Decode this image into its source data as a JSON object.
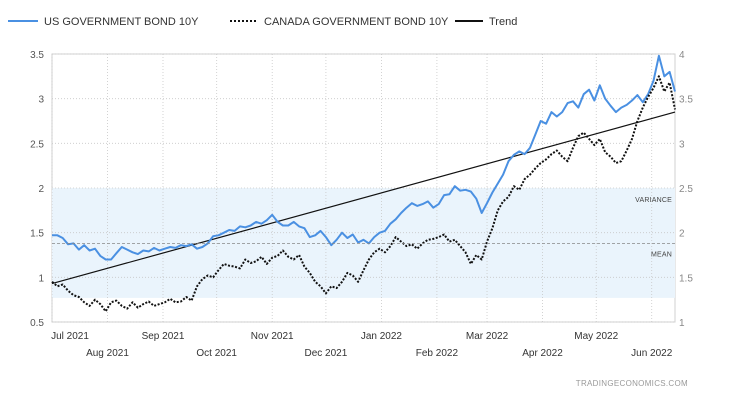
{
  "chart_data": {
    "type": "line",
    "watermark": "TRADINGECONOMICS.COM",
    "legend": [
      {
        "name": "US GOVERNMENT BOND 10Y",
        "style": "solid-blue"
      },
      {
        "name": "CANADA GOVERNMENT BOND 10Y",
        "style": "dotted-black"
      },
      {
        "name": "Trend",
        "style": "solid-black"
      }
    ],
    "y_left": {
      "min": 0.5,
      "max": 3.5,
      "ticks": [
        "0.5",
        "1",
        "1.5",
        "2",
        "2.5",
        "3",
        "3.5"
      ]
    },
    "y_right": {
      "min": 1,
      "max": 4,
      "ticks": [
        "1",
        "1.5",
        "2",
        "2.5",
        "3",
        "3.5",
        "4"
      ]
    },
    "x_range_days": [
      0,
      348
    ],
    "x_ticks_top": [
      {
        "label": "Jul 2021",
        "day": 0
      },
      {
        "label": "Sep 2021",
        "day": 62
      },
      {
        "label": "Nov 2021",
        "day": 123
      },
      {
        "label": "Jan 2022",
        "day": 184
      },
      {
        "label": "Mar 2022",
        "day": 243
      },
      {
        "label": "May 2022",
        "day": 304
      }
    ],
    "x_ticks_bottom": [
      {
        "label": "Aug 2021",
        "day": 31
      },
      {
        "label": "Oct 2021",
        "day": 92
      },
      {
        "label": "Dec 2021",
        "day": 153
      },
      {
        "label": "Feb 2022",
        "day": 215
      },
      {
        "label": "Apr 2022",
        "day": 274
      },
      {
        "label": "Jun 2022",
        "day": 335
      }
    ],
    "variance_band": {
      "label": "VARIANCE",
      "low": 0.77,
      "high": 2.0
    },
    "mean": {
      "label": "MEAN",
      "value": 1.38
    },
    "trend": {
      "start": [
        0,
        0.93
      ],
      "end": [
        348,
        2.85
      ]
    },
    "series": [
      {
        "name": "US GOVERNMENT BOND 10Y",
        "axis": "left",
        "points": [
          [
            0,
            1.47
          ],
          [
            3,
            1.47
          ],
          [
            6,
            1.44
          ],
          [
            9,
            1.37
          ],
          [
            12,
            1.38
          ],
          [
            15,
            1.31
          ],
          [
            18,
            1.36
          ],
          [
            21,
            1.3
          ],
          [
            24,
            1.32
          ],
          [
            27,
            1.24
          ],
          [
            30,
            1.2
          ],
          [
            33,
            1.2
          ],
          [
            36,
            1.27
          ],
          [
            39,
            1.34
          ],
          [
            42,
            1.31
          ],
          [
            45,
            1.28
          ],
          [
            48,
            1.26
          ],
          [
            51,
            1.3
          ],
          [
            54,
            1.29
          ],
          [
            57,
            1.33
          ],
          [
            60,
            1.3
          ],
          [
            63,
            1.32
          ],
          [
            66,
            1.34
          ],
          [
            69,
            1.33
          ],
          [
            72,
            1.36
          ],
          [
            75,
            1.35
          ],
          [
            78,
            1.37
          ],
          [
            81,
            1.32
          ],
          [
            84,
            1.34
          ],
          [
            87,
            1.38
          ],
          [
            90,
            1.46
          ],
          [
            93,
            1.47
          ],
          [
            96,
            1.5
          ],
          [
            99,
            1.53
          ],
          [
            102,
            1.52
          ],
          [
            105,
            1.57
          ],
          [
            108,
            1.56
          ],
          [
            111,
            1.58
          ],
          [
            114,
            1.62
          ],
          [
            117,
            1.6
          ],
          [
            120,
            1.64
          ],
          [
            123,
            1.7
          ],
          [
            126,
            1.62
          ],
          [
            129,
            1.58
          ],
          [
            132,
            1.58
          ],
          [
            135,
            1.62
          ],
          [
            138,
            1.57
          ],
          [
            141,
            1.55
          ],
          [
            144,
            1.45
          ],
          [
            147,
            1.47
          ],
          [
            150,
            1.52
          ],
          [
            153,
            1.45
          ],
          [
            156,
            1.36
          ],
          [
            159,
            1.42
          ],
          [
            162,
            1.5
          ],
          [
            165,
            1.44
          ],
          [
            168,
            1.48
          ],
          [
            171,
            1.39
          ],
          [
            174,
            1.42
          ],
          [
            177,
            1.38
          ],
          [
            180,
            1.45
          ],
          [
            183,
            1.5
          ],
          [
            186,
            1.52
          ],
          [
            189,
            1.6
          ],
          [
            192,
            1.65
          ],
          [
            195,
            1.72
          ],
          [
            198,
            1.78
          ],
          [
            201,
            1.83
          ],
          [
            204,
            1.8
          ],
          [
            207,
            1.82
          ],
          [
            210,
            1.85
          ],
          [
            213,
            1.78
          ],
          [
            216,
            1.82
          ],
          [
            219,
            1.92
          ],
          [
            222,
            1.93
          ],
          [
            225,
            2.02
          ],
          [
            228,
            1.97
          ],
          [
            231,
            1.98
          ],
          [
            234,
            1.96
          ],
          [
            237,
            1.88
          ],
          [
            240,
            1.72
          ],
          [
            243,
            1.83
          ],
          [
            246,
            1.95
          ],
          [
            249,
            2.05
          ],
          [
            252,
            2.15
          ],
          [
            255,
            2.3
          ],
          [
            258,
            2.37
          ],
          [
            261,
            2.41
          ],
          [
            264,
            2.38
          ],
          [
            267,
            2.45
          ],
          [
            270,
            2.6
          ],
          [
            273,
            2.75
          ],
          [
            276,
            2.72
          ],
          [
            279,
            2.85
          ],
          [
            282,
            2.8
          ],
          [
            285,
            2.85
          ],
          [
            288,
            2.95
          ],
          [
            291,
            2.97
          ],
          [
            294,
            2.9
          ],
          [
            297,
            3.05
          ],
          [
            300,
            3.1
          ],
          [
            303,
            2.98
          ],
          [
            306,
            3.15
          ],
          [
            309,
            3.0
          ],
          [
            312,
            2.92
          ],
          [
            315,
            2.85
          ],
          [
            318,
            2.9
          ],
          [
            321,
            2.93
          ],
          [
            324,
            2.98
          ],
          [
            327,
            3.04
          ],
          [
            330,
            2.96
          ],
          [
            333,
            3.05
          ],
          [
            336,
            3.2
          ],
          [
            339,
            3.48
          ],
          [
            342,
            3.25
          ],
          [
            345,
            3.3
          ],
          [
            348,
            3.08
          ]
        ]
      },
      {
        "name": "CANADA GOVERNMENT BOND 10Y",
        "axis": "right",
        "points": [
          [
            0,
            1.45
          ],
          [
            3,
            1.4
          ],
          [
            6,
            1.42
          ],
          [
            9,
            1.35
          ],
          [
            12,
            1.3
          ],
          [
            15,
            1.28
          ],
          [
            18,
            1.22
          ],
          [
            21,
            1.18
          ],
          [
            24,
            1.25
          ],
          [
            27,
            1.2
          ],
          [
            30,
            1.12
          ],
          [
            33,
            1.22
          ],
          [
            36,
            1.24
          ],
          [
            39,
            1.18
          ],
          [
            42,
            1.15
          ],
          [
            45,
            1.22
          ],
          [
            48,
            1.16
          ],
          [
            51,
            1.2
          ],
          [
            54,
            1.23
          ],
          [
            57,
            1.18
          ],
          [
            60,
            1.2
          ],
          [
            63,
            1.22
          ],
          [
            66,
            1.26
          ],
          [
            69,
            1.22
          ],
          [
            72,
            1.23
          ],
          [
            75,
            1.28
          ],
          [
            78,
            1.24
          ],
          [
            81,
            1.4
          ],
          [
            84,
            1.48
          ],
          [
            87,
            1.52
          ],
          [
            90,
            1.5
          ],
          [
            93,
            1.58
          ],
          [
            96,
            1.65
          ],
          [
            99,
            1.63
          ],
          [
            102,
            1.62
          ],
          [
            105,
            1.6
          ],
          [
            108,
            1.7
          ],
          [
            111,
            1.66
          ],
          [
            114,
            1.68
          ],
          [
            117,
            1.73
          ],
          [
            120,
            1.65
          ],
          [
            123,
            1.72
          ],
          [
            126,
            1.74
          ],
          [
            129,
            1.8
          ],
          [
            132,
            1.73
          ],
          [
            135,
            1.7
          ],
          [
            138,
            1.75
          ],
          [
            141,
            1.62
          ],
          [
            144,
            1.55
          ],
          [
            147,
            1.45
          ],
          [
            150,
            1.4
          ],
          [
            153,
            1.32
          ],
          [
            156,
            1.4
          ],
          [
            159,
            1.38
          ],
          [
            162,
            1.45
          ],
          [
            165,
            1.55
          ],
          [
            168,
            1.52
          ],
          [
            171,
            1.45
          ],
          [
            174,
            1.58
          ],
          [
            177,
            1.7
          ],
          [
            180,
            1.78
          ],
          [
            183,
            1.82
          ],
          [
            186,
            1.78
          ],
          [
            189,
            1.85
          ],
          [
            192,
            1.95
          ],
          [
            195,
            1.9
          ],
          [
            198,
            1.85
          ],
          [
            201,
            1.87
          ],
          [
            204,
            1.82
          ],
          [
            207,
            1.88
          ],
          [
            210,
            1.92
          ],
          [
            213,
            1.93
          ],
          [
            216,
            1.95
          ],
          [
            219,
            1.98
          ],
          [
            222,
            1.9
          ],
          [
            225,
            1.92
          ],
          [
            228,
            1.85
          ],
          [
            231,
            1.78
          ],
          [
            234,
            1.65
          ],
          [
            237,
            1.75
          ],
          [
            240,
            1.7
          ],
          [
            243,
            1.9
          ],
          [
            246,
            2.05
          ],
          [
            249,
            2.25
          ],
          [
            252,
            2.35
          ],
          [
            255,
            2.4
          ],
          [
            258,
            2.52
          ],
          [
            261,
            2.48
          ],
          [
            264,
            2.6
          ],
          [
            267,
            2.65
          ],
          [
            270,
            2.72
          ],
          [
            273,
            2.78
          ],
          [
            276,
            2.82
          ],
          [
            279,
            2.88
          ],
          [
            282,
            2.92
          ],
          [
            285,
            2.85
          ],
          [
            288,
            2.8
          ],
          [
            291,
            2.95
          ],
          [
            294,
            3.08
          ],
          [
            297,
            3.12
          ],
          [
            300,
            3.05
          ],
          [
            303,
            2.98
          ],
          [
            306,
            3.05
          ],
          [
            309,
            2.9
          ],
          [
            312,
            2.85
          ],
          [
            315,
            2.78
          ],
          [
            318,
            2.8
          ],
          [
            321,
            2.92
          ],
          [
            324,
            3.05
          ],
          [
            327,
            3.25
          ],
          [
            330,
            3.4
          ],
          [
            333,
            3.52
          ],
          [
            336,
            3.62
          ],
          [
            339,
            3.75
          ],
          [
            342,
            3.58
          ],
          [
            345,
            3.68
          ],
          [
            348,
            3.38
          ]
        ]
      }
    ]
  }
}
